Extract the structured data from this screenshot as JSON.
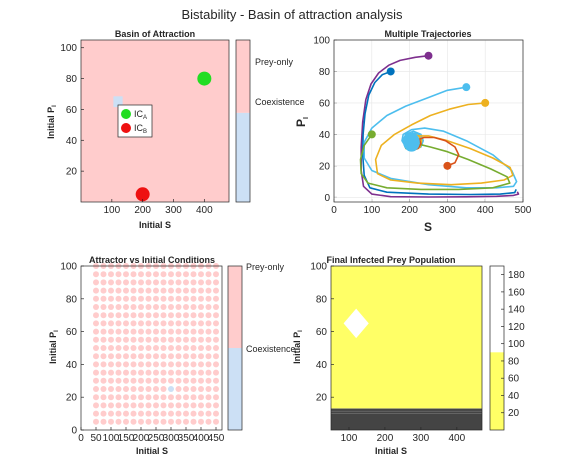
{
  "figure": {
    "suptitle": "Bistability - Basin of attraction analysis"
  },
  "colors": {
    "prey_only": "#ffcccc",
    "coexistence": "#cce0f5",
    "ic_a": "#22dd22",
    "ic_b": "#ee1111",
    "heat": "#ffff66",
    "heat_low": "#444444"
  },
  "chart_data": [
    {
      "type": "heatmap",
      "title": "Basin of Attraction",
      "xlabel": "Initial S",
      "ylabel": "Initial P",
      "ylabel_sub": "I",
      "xlim": [
        0,
        480
      ],
      "ylim": [
        0,
        105
      ],
      "xticks": [
        100,
        200,
        300,
        400
      ],
      "yticks": [
        20,
        40,
        60,
        80,
        100
      ],
      "background_class": "Prey-only",
      "coexistence_points": [
        {
          "x": 120,
          "y": 65
        }
      ],
      "markers": [
        {
          "name": "IC",
          "sub": "A",
          "x": 400,
          "y": 80,
          "color": "#22dd22"
        },
        {
          "name": "IC",
          "sub": "B",
          "x": 200,
          "y": 5,
          "color": "#ee1111"
        }
      ],
      "legend": [
        {
          "label": "IC",
          "sub": "A",
          "color": "#22dd22"
        },
        {
          "label": "IC",
          "sub": "B",
          "color": "#ee1111"
        }
      ],
      "colorbar": {
        "labels": [
          "Prey-only",
          "Coexistence"
        ],
        "split_fraction": 0.55
      }
    },
    {
      "type": "line",
      "title": "Multiple Trajectories",
      "xlabel": "S",
      "ylabel": "P",
      "ylabel_sub": "I",
      "xlim": [
        0,
        500
      ],
      "ylim": [
        -3,
        100
      ],
      "xticks": [
        0,
        100,
        200,
        300,
        400,
        500
      ],
      "yticks": [
        0,
        20,
        40,
        60,
        80,
        100
      ],
      "series": [
        {
          "color": "#7e2f8e",
          "start": {
            "x": 250,
            "y": 90
          },
          "points": [
            [
              250,
              90
            ],
            [
              215,
              89
            ],
            [
              175,
              87
            ],
            [
              145,
              84
            ],
            [
              118,
              79
            ],
            [
              98,
              72
            ],
            [
              84,
              62
            ],
            [
              76,
              48
            ],
            [
              72,
              32
            ],
            [
              72,
              17
            ],
            [
              78,
              7
            ],
            [
              100,
              2
            ],
            [
              150,
              0.4
            ],
            [
              250,
              0.2
            ],
            [
              350,
              0.3
            ],
            [
              430,
              0.6
            ],
            [
              475,
              1.2
            ],
            [
              488,
              2
            ],
            [
              485,
              3.5
            ]
          ]
        },
        {
          "color": "#0072bd",
          "start": {
            "x": 150,
            "y": 80
          },
          "points": [
            [
              150,
              80
            ],
            [
              128,
              78
            ],
            [
              108,
              73
            ],
            [
              92,
              65
            ],
            [
              82,
              53
            ],
            [
              77,
              40
            ],
            [
              76,
              27
            ],
            [
              80,
              14
            ],
            [
              95,
              6
            ],
            [
              140,
              3.2
            ],
            [
              250,
              2
            ],
            [
              360,
              1.8
            ],
            [
              440,
              2
            ],
            [
              478,
              3
            ],
            [
              482,
              5
            ]
          ]
        },
        {
          "color": "#4dbeee",
          "start": {
            "x": 350,
            "y": 70
          },
          "points": [
            [
              350,
              70
            ],
            [
              300,
              68
            ],
            [
              245,
              63
            ],
            [
              190,
              58
            ],
            [
              140,
              52
            ],
            [
              100,
              44
            ],
            [
              80,
              35
            ],
            [
              80,
              25
            ],
            [
              100,
              17
            ],
            [
              150,
              12
            ],
            [
              250,
              8
            ],
            [
              350,
              6
            ],
            [
              430,
              6
            ],
            [
              475,
              7
            ],
            [
              483,
              10
            ],
            [
              470,
              17
            ],
            [
              420,
              27
            ],
            [
              350,
              36
            ],
            [
              290,
              42
            ],
            [
              240,
              44
            ],
            [
              205,
              43
            ],
            [
              183,
              40
            ],
            [
              180,
              36
            ],
            [
              190,
              32
            ],
            [
              210,
              30
            ],
            [
              230,
              32
            ],
            [
              236,
              36
            ],
            [
              230,
              40
            ],
            [
              210,
              42
            ],
            [
              190,
              40
            ],
            [
              182,
              36
            ],
            [
              188,
              32
            ],
            [
              206,
              30.5
            ],
            [
              226,
              32
            ],
            [
              232,
              36
            ],
            [
              224,
              40
            ],
            [
              206,
              41
            ]
          ]
        },
        {
          "color": "#edb120",
          "start": {
            "x": 400,
            "y": 60
          },
          "points": [
            [
              400,
              60
            ],
            [
              355,
              59
            ],
            [
              305,
              56
            ],
            [
              255,
              52
            ],
            [
              205,
              46
            ],
            [
              160,
              40
            ],
            [
              125,
              33
            ],
            [
              110,
              24
            ],
            [
              115,
              15
            ],
            [
              150,
              11
            ],
            [
              220,
              9
            ],
            [
              310,
              8
            ],
            [
              390,
              9
            ],
            [
              450,
              11
            ],
            [
              473,
              14
            ],
            [
              466,
              19
            ],
            [
              420,
              25
            ],
            [
              360,
              31
            ],
            [
              300,
              36
            ],
            [
              250,
              39
            ],
            [
              212,
              39
            ],
            [
              192,
              37
            ],
            [
              186,
              34
            ],
            [
              194,
              31
            ],
            [
              212,
              30
            ],
            [
              228,
              32
            ],
            [
              232,
              36
            ],
            [
              224,
              39
            ],
            [
              208,
              40
            ]
          ]
        },
        {
          "color": "#77ac30",
          "start": {
            "x": 100,
            "y": 40
          },
          "points": [
            [
              100,
              40
            ],
            [
              80,
              33
            ],
            [
              70,
              24
            ],
            [
              72,
              15
            ],
            [
              90,
              9
            ],
            [
              140,
              6
            ],
            [
              230,
              5
            ],
            [
              330,
              5
            ],
            [
              420,
              6
            ],
            [
              465,
              9
            ],
            [
              458,
              13
            ],
            [
              415,
              18
            ],
            [
              355,
              24
            ],
            [
              300,
              29
            ],
            [
              255,
              32
            ],
            [
              220,
              34
            ],
            [
              198,
              34
            ],
            [
              188,
              33
            ],
            [
              190,
              31
            ],
            [
              205,
              30
            ],
            [
              222,
              31
            ],
            [
              230,
              34
            ],
            [
              224,
              37
            ],
            [
              210,
              38
            ]
          ]
        },
        {
          "color": "#d95319",
          "start": {
            "x": 300,
            "y": 20
          },
          "points": [
            [
              300,
              20
            ],
            [
              320,
              22
            ],
            [
              330,
              27
            ],
            [
              320,
              32
            ],
            [
              295,
              36
            ],
            [
              265,
              38
            ],
            [
              238,
              38
            ],
            [
              215,
              36
            ],
            [
              200,
              33
            ],
            [
              198,
              31
            ],
            [
              207,
              30
            ],
            [
              222,
              31
            ],
            [
              230,
              34
            ],
            [
              226,
              37
            ],
            [
              214,
              38
            ],
            [
              202,
              37
            ]
          ]
        }
      ],
      "attractor": {
        "x": 205,
        "y": 35,
        "color": "#4dbeee"
      }
    },
    {
      "type": "scatter",
      "title": "Attractor vs Initial Conditions",
      "xlabel": "Initial S",
      "ylabel": "Initial P",
      "ylabel_sub": "I",
      "xlim": [
        0,
        470
      ],
      "ylim": [
        0,
        100
      ],
      "xticks": [
        0,
        50,
        100,
        150,
        200,
        250,
        300,
        350,
        400,
        450
      ],
      "yticks": [
        0,
        20,
        40,
        60,
        80,
        100
      ],
      "grid_x": [
        50,
        75,
        100,
        125,
        150,
        175,
        200,
        225,
        250,
        275,
        300,
        325,
        350,
        375,
        400,
        425,
        450
      ],
      "grid_y": [
        5,
        10,
        15,
        20,
        25,
        30,
        35,
        40,
        45,
        50,
        55,
        60,
        65,
        70,
        75,
        80,
        85,
        90,
        95,
        100
      ],
      "coexistence_points": [
        {
          "x": 300,
          "y": 25
        }
      ],
      "colorbar": {
        "labels": [
          "Prey-only",
          "Coexistence"
        ],
        "split_fraction": 0.5
      }
    },
    {
      "type": "heatmap",
      "title": "Final Infected Prey Population",
      "xlabel": "Initial S",
      "ylabel": "Initial P",
      "ylabel_sub": "I",
      "xlim": [
        50,
        470
      ],
      "ylim": [
        0,
        100
      ],
      "xticks": [
        100,
        200,
        300,
        400
      ],
      "yticks": [
        20,
        40,
        60,
        80,
        100
      ],
      "background_value": 90,
      "low_band_rows": [
        10,
        11.5,
        13
      ],
      "high_point": {
        "x": 120,
        "y": 65,
        "value": 185
      },
      "colorbar": {
        "ticks": [
          20,
          40,
          60,
          80,
          100,
          120,
          140,
          160,
          180
        ],
        "range": [
          0,
          190
        ],
        "fill_value": 90
      }
    }
  ]
}
